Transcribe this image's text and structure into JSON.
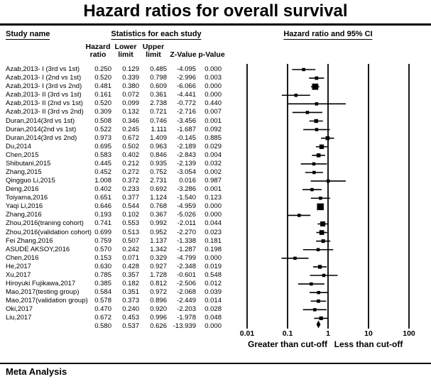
{
  "title": "Hazard ratios for overall survival",
  "headers": {
    "study": "Study name",
    "stats": "Statistics for each study",
    "plot": "Hazard ratio and 95% CI",
    "sub": [
      {
        "l1": "Hazard",
        "l2": "ratio"
      },
      {
        "l1": "Lower",
        "l2": "limit"
      },
      {
        "l1": "Upper",
        "l2": "limit"
      },
      {
        "l1": "",
        "l2": "Z-Value"
      },
      {
        "l1": "",
        "l2": "p-Value"
      }
    ]
  },
  "axis": {
    "scale": "log10",
    "ticks": [
      0.01,
      0.1,
      1,
      10,
      100
    ],
    "tick_labels": [
      "0.01",
      "0.1",
      "1",
      "10",
      "100"
    ],
    "left_caption": "Greater than cut-off",
    "right_caption": "Less than cut-off"
  },
  "footer": {
    "label": "Meta Analysis"
  },
  "colors": {
    "ink": "#000000",
    "background": "#ffffff"
  },
  "chart_data": {
    "type": "forest",
    "title": "Hazard ratios for overall survival",
    "xlim": [
      0.01,
      100
    ],
    "studies": [
      {
        "name": "Azab,2013- I (3rd vs 1st)",
        "hr": "0.250",
        "lower": "0.129",
        "upper": "0.485",
        "z": "-4.095",
        "p": "0.000"
      },
      {
        "name": "Azab,2013- I (2nd vs 1st)",
        "hr": "0.520",
        "lower": "0.339",
        "upper": "0.798",
        "z": "-2.996",
        "p": "0.003"
      },
      {
        "name": "Azab,2013- I (3rd vs 2nd)",
        "hr": "0.481",
        "lower": "0.380",
        "upper": "0.609",
        "z": "-6.066",
        "p": "0.000"
      },
      {
        "name": "Azab,2013- II (3rd vs 1st)",
        "hr": "0.161",
        "lower": "0.072",
        "upper": "0.361",
        "z": "-4.441",
        "p": "0.000"
      },
      {
        "name": "Azab,2013- II (2nd vs 1st)",
        "hr": "0.520",
        "lower": "0.099",
        "upper": "2.738",
        "z": "-0.772",
        "p": "0.440"
      },
      {
        "name": "Azab,2013- II (3rd vs 2nd)",
        "hr": "0.309",
        "lower": "0.132",
        "upper": "0.721",
        "z": "-2.716",
        "p": "0.007"
      },
      {
        "name": "Duran,2014(3rd vs 1st)",
        "hr": "0.508",
        "lower": "0.346",
        "upper": "0.746",
        "z": "-3.456",
        "p": "0.001"
      },
      {
        "name": "Duran,2014(2nd vs 1st)",
        "hr": "0.522",
        "lower": "0.245",
        "upper": "1.111",
        "z": "-1.687",
        "p": "0.092"
      },
      {
        "name": "Duran,2014(3rd vs 2nd)",
        "hr": "0.973",
        "lower": "0.672",
        "upper": "1.409",
        "z": "-0.145",
        "p": "0.885"
      },
      {
        "name": "Du,2014",
        "hr": "0.695",
        "lower": "0.502",
        "upper": "0.963",
        "z": "-2.189",
        "p": "0.029"
      },
      {
        "name": "Chen,2015",
        "hr": "0.583",
        "lower": "0.402",
        "upper": "0.846",
        "z": "-2.843",
        "p": "0.004"
      },
      {
        "name": "Shibutani,2015",
        "hr": "0.445",
        "lower": "0.212",
        "upper": "0.935",
        "z": "-2.139",
        "p": "0.032"
      },
      {
        "name": "Zhang,2015",
        "hr": "0.452",
        "lower": "0.272",
        "upper": "0.752",
        "z": "-3.054",
        "p": "0.002"
      },
      {
        "name": "Qingguo Li,2015",
        "hr": "1.008",
        "lower": "0.372",
        "upper": "2.731",
        "z": "0.016",
        "p": "0.987"
      },
      {
        "name": "Deng,2016",
        "hr": "0.402",
        "lower": "0.233",
        "upper": "0.692",
        "z": "-3.286",
        "p": "0.001"
      },
      {
        "name": "Toiyama,2016",
        "hr": "0.651",
        "lower": "0.377",
        "upper": "1.124",
        "z": "-1.540",
        "p": "0.123"
      },
      {
        "name": "Yaqi Li,2016",
        "hr": "0.646",
        "lower": "0.544",
        "upper": "0.768",
        "z": "-4.959",
        "p": "0.000"
      },
      {
        "name": "Zhang,2016",
        "hr": "0.193",
        "lower": "0.102",
        "upper": "0.367",
        "z": "-5.026",
        "p": "0.000"
      },
      {
        "name": "Zhou,2016(traning cohort)",
        "hr": "0.741",
        "lower": "0.553",
        "upper": "0.992",
        "z": "-2.011",
        "p": "0.044"
      },
      {
        "name": "Zhou,2016(validation cohort)",
        "hr": "0.699",
        "lower": "0.513",
        "upper": "0.952",
        "z": "-2.270",
        "p": "0.023"
      },
      {
        "name": "Fei Zhang,2016",
        "hr": "0.759",
        "lower": "0.507",
        "upper": "1.137",
        "z": "-1.338",
        "p": "0.181"
      },
      {
        "name": "ASUDE AKSOY,2016",
        "hr": "0.570",
        "lower": "0.242",
        "upper": "1.342",
        "z": "-1.287",
        "p": "0.198"
      },
      {
        "name": "Chen,2016",
        "hr": "0.153",
        "lower": "0.071",
        "upper": "0.329",
        "z": "-4.799",
        "p": "0.000"
      },
      {
        "name": "He,2017",
        "hr": "0.630",
        "lower": "0.428",
        "upper": "0.927",
        "z": "-2.348",
        "p": "0.019"
      },
      {
        "name": "Xu,2017",
        "hr": "0.785",
        "lower": "0.357",
        "upper": "1.728",
        "z": "-0.601",
        "p": "0.548"
      },
      {
        "name": "Hiroyuki Fujikawa,2017",
        "hr": "0.385",
        "lower": "0.182",
        "upper": "0.812",
        "z": "-2.506",
        "p": "0.012"
      },
      {
        "name": "Mao,2017(testing group)",
        "hr": "0.584",
        "lower": "0.351",
        "upper": "0.972",
        "z": "-2.068",
        "p": "0.039"
      },
      {
        "name": "Mao,2017(validation group)",
        "hr": "0.578",
        "lower": "0.373",
        "upper": "0.896",
        "z": "-2.449",
        "p": "0.014"
      },
      {
        "name": "Oki,2017",
        "hr": "0.470",
        "lower": "0.240",
        "upper": "0.920",
        "z": "-2.203",
        "p": "0.028"
      },
      {
        "name": "Liu,2017",
        "hr": "0.672",
        "lower": "0.453",
        "upper": "0.996",
        "z": "-1.978",
        "p": "0.048"
      }
    ],
    "overall": {
      "name": "",
      "hr": "0.580",
      "lower": "0.537",
      "upper": "0.626",
      "z": "-13.939",
      "p": "0.000"
    }
  }
}
